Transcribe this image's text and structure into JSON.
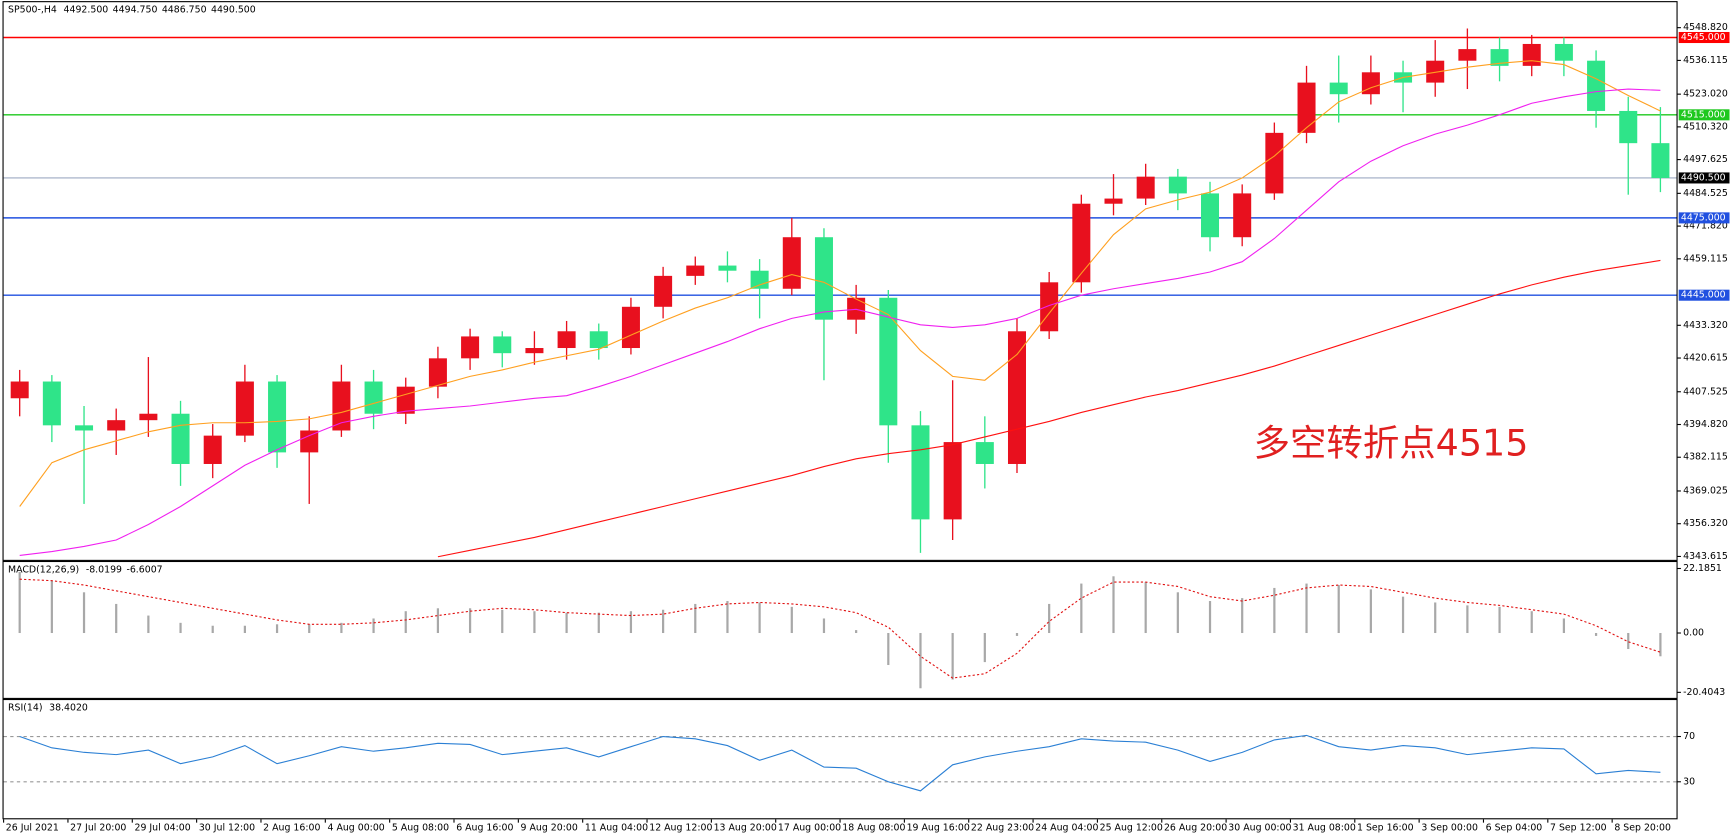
{
  "chart_data": [
    {
      "type": "candlestick",
      "title": "SP500-,H4",
      "header_values": [
        {
          "value": 4492.5,
          "label": "4492.500"
        },
        {
          "value": 4494.75,
          "label": "4494.750"
        },
        {
          "value": 4486.75,
          "label": "4486.750"
        },
        {
          "value": 4490.5,
          "label": "4490.500"
        }
      ],
      "open": [
        4405,
        4411.5,
        4394.5,
        4392.5,
        4396.5,
        4399,
        4379.5,
        4390.5,
        4411.5,
        4384,
        4392.5,
        4411.5,
        4399,
        4409.5,
        4420.5,
        4429,
        4422.5,
        4424.5,
        4431,
        4424.5,
        4440.5,
        4452.5,
        4456.5,
        4454.5,
        4447.5,
        4467.5,
        4435.5,
        4444,
        4394.5,
        4358,
        4388,
        4379.5,
        4431,
        4450,
        4480.5,
        4482.5,
        4491,
        4484.5,
        4467.5,
        4484.5,
        4508,
        4527.5,
        4523,
        4531.5,
        4527.5,
        4536,
        4540.5,
        4534,
        4542.5,
        4536,
        4516.5,
        4504
      ],
      "high": [
        4416,
        4414,
        4402,
        4401,
        4421,
        4404,
        4395,
        4418,
        4414,
        4398,
        4418,
        4416,
        4413,
        4425,
        4432,
        4431,
        4431,
        4435,
        4434,
        4444,
        4456,
        4460,
        4462,
        4459,
        4475,
        4471,
        4449,
        4447,
        4400,
        4412,
        4398,
        4436,
        4454,
        4484,
        4492,
        4496,
        4494,
        4489,
        4488,
        4512,
        4534,
        4538,
        4538,
        4536,
        4544,
        4548.5,
        4545,
        4546,
        4545,
        4540,
        4522,
        4518
      ],
      "low": [
        4398,
        4388,
        4364,
        4383,
        4390,
        4371,
        4374,
        4388,
        4378,
        4364,
        4390,
        4393,
        4395,
        4405,
        4416,
        4417,
        4418,
        4420,
        4420,
        4422,
        4436,
        4449,
        4450,
        4436,
        4445,
        4412,
        4430,
        4380,
        4345,
        4350,
        4370,
        4376,
        4428,
        4446,
        4476,
        4480,
        4478,
        4462,
        4464,
        4482,
        4504,
        4512,
        4519,
        4516,
        4522,
        4525,
        4528,
        4530,
        4530,
        4510,
        4484,
        4485
      ],
      "close": [
        4411.5,
        4394.5,
        4392.5,
        4396.5,
        4399,
        4379.5,
        4390.5,
        4411.5,
        4384,
        4392.5,
        4411.5,
        4399,
        4409.5,
        4420.5,
        4429,
        4422.5,
        4424.5,
        4431,
        4424.5,
        4440.5,
        4452.5,
        4456.5,
        4454.5,
        4447.5,
        4467.5,
        4435.5,
        4444,
        4394.5,
        4358,
        4388,
        4379.5,
        4431,
        4450,
        4480.5,
        4482.5,
        4491,
        4484.5,
        4467.5,
        4484.5,
        4508,
        4527.5,
        4523,
        4531.5,
        4527.5,
        4536,
        4540.5,
        4534,
        4542.5,
        4536,
        4516.5,
        4504,
        4490.5
      ],
      "up_color": "#e8101e",
      "down_color": "#2fe489",
      "series": [
        {
          "color": "#ffa020",
          "values": [
            4363,
            4380,
            4385,
            4388.5,
            4392,
            4394.5,
            4395.5,
            4395.5,
            4396,
            4397,
            4399.5,
            4403,
            4406.5,
            4410,
            4413.5,
            4416,
            4419,
            4421.5,
            4424,
            4429.5,
            4435,
            4440,
            4444,
            4449,
            4453,
            4450,
            4443.5,
            4437.5,
            4423.5,
            4413.5,
            4412,
            4422,
            4438,
            4453.5,
            4468.5,
            4478.5,
            4482,
            4485,
            4490.5,
            4499,
            4510,
            4520,
            4525.5,
            4529.5,
            4531.5,
            4533.5,
            4535,
            4536,
            4534.5,
            4529,
            4522.5,
            4516.5
          ]
        },
        {
          "color": "#f020f0",
          "values": [
            4344,
            4345.5,
            4347.5,
            4350,
            4356,
            4363,
            4371,
            4379,
            4385,
            4390.5,
            4395.5,
            4398,
            4400,
            4401,
            4402,
            4403.5,
            4405,
            4406,
            4409.5,
            4413.5,
            4418,
            4422.5,
            4427,
            4432,
            4436,
            4438.5,
            4439.5,
            4436.5,
            4433.5,
            4432.5,
            4433.5,
            4436,
            4441,
            4445,
            4447.5,
            4449.5,
            4451.5,
            4454,
            4458,
            4467,
            4478,
            4489,
            4497,
            4503,
            4507.5,
            4511,
            4515,
            4519.5,
            4522,
            4524,
            4525,
            4524.5
          ]
        },
        {
          "color": "#ff1010",
          "values": [
            null,
            null,
            null,
            null,
            null,
            null,
            null,
            null,
            null,
            null,
            null,
            null,
            null,
            4343.5,
            4346,
            4348.5,
            4351,
            4354,
            4357,
            4360,
            4363,
            4366,
            4369,
            4372,
            4375,
            4378.5,
            4381.5,
            4383.5,
            4385,
            4387,
            4390,
            4393,
            4396,
            4399.5,
            4402.5,
            4405.5,
            4408,
            4411,
            4414,
            4417.5,
            4421.5,
            4425.5,
            4429.5,
            4433.5,
            4437.5,
            4441.5,
            4445.5,
            4449,
            4452,
            4454.5,
            4456.5,
            4458.5
          ]
        }
      ],
      "ylim": [
        4342.3,
        4558.7
      ],
      "yticks": [
        {
          "value": 4548.82,
          "label": "4548.820"
        },
        4536.115,
        {
          "value": 4523.02,
          "label": "4523.020"
        },
        {
          "value": 4510.32,
          "label": "4510.320"
        },
        4497.625,
        4484.525,
        {
          "value": 4471.82,
          "label": "4471.820"
        },
        4459.115,
        {
          "value": 4433.32,
          "label": "4433.320"
        },
        4420.615,
        4407.525,
        {
          "value": 4394.82,
          "label": "4394.820"
        },
        4382.115,
        4369.025,
        {
          "value": 4356.32,
          "label": "4356.320"
        },
        4343.615
      ],
      "levels": [
        {
          "value": 4545,
          "label": "4545.000",
          "color": "#ff0000"
        },
        {
          "value": 4515,
          "label": "4515.000",
          "color": "#1ec81e"
        },
        {
          "value": 4490.5,
          "label": "4490.500",
          "color": "#000000"
        },
        {
          "value": 4475,
          "label": "4475.000",
          "color": "#2050e0"
        },
        {
          "value": 4445,
          "label": "4445.000",
          "color": "#2050e0"
        }
      ],
      "annotation": "多空转折点4515",
      "annotation_color": "#e02020"
    },
    {
      "type": "macd",
      "title": "MACD(12,26,9)",
      "header_values": [
        -8.0199,
        -6.6007
      ],
      "hist": [
        21,
        18,
        14,
        10,
        6,
        3.5,
        2.5,
        2.5,
        3,
        3,
        3.5,
        5,
        7.5,
        8.5,
        8.5,
        8,
        7.5,
        7,
        7,
        7.5,
        8,
        10,
        11,
        10.5,
        9,
        5,
        1,
        -11,
        -19,
        -16,
        -10,
        -1,
        10,
        17,
        19.5,
        17.5,
        14,
        11,
        12,
        15.5,
        17,
        16.5,
        15,
        12.5,
        10.5,
        9.5,
        9,
        7.5,
        5,
        -1,
        -5.5,
        -8
      ],
      "signal": [
        18.5,
        18,
        16.5,
        14.5,
        12.5,
        10.5,
        8.5,
        6.5,
        4.5,
        3,
        3,
        3.5,
        4.5,
        6,
        7.5,
        8.5,
        8,
        7,
        6.5,
        6,
        6.5,
        8.5,
        10,
        10.5,
        10,
        9,
        7,
        2,
        -8,
        -15.5,
        -14,
        -7,
        4,
        12,
        17.5,
        17.5,
        16,
        12.5,
        11,
        13,
        15.5,
        16.5,
        16,
        14,
        12,
        10.5,
        9.5,
        8,
        6.5,
        2.5,
        -3,
        -6.6
      ],
      "hist_color": "#a8a8a8",
      "signal_color": "#e01010",
      "ylim": [
        -22.3,
        24.4
      ],
      "yticks": [
        22.1851,
        {
          "value": 0,
          "label": "0.00"
        },
        -20.4043
      ]
    },
    {
      "type": "rsi",
      "title": "RSI(14)",
      "header_values": [
        {
          "value": 38.402,
          "label": "38.4020"
        }
      ],
      "values": [
        70,
        60,
        56,
        54,
        58,
        46,
        52,
        62,
        46,
        53,
        61,
        57,
        60,
        64,
        63,
        54,
        57,
        60,
        52,
        61,
        70,
        68,
        62,
        49,
        58,
        43,
        42,
        30,
        22,
        45,
        52,
        57,
        61,
        68,
        66,
        65,
        58,
        48,
        56,
        67,
        71,
        61,
        58,
        62,
        60,
        54,
        57,
        60,
        59,
        37,
        40,
        38.4
      ],
      "color": "#2a7fd4",
      "ylim": [
        -2.2,
        102.2
      ],
      "yticks": [
        70,
        30
      ],
      "grid": true,
      "categories": [
        "26 Jul 2021",
        null,
        "27 Jul 20:00",
        null,
        "29 Jul 04:00",
        null,
        "30 Jul 12:00",
        null,
        "2 Aug 16:00",
        null,
        "4 Aug 00:00",
        null,
        "5 Aug 08:00",
        null,
        "6 Aug 16:00",
        null,
        "9 Aug 20:00",
        null,
        "11 Aug 04:00",
        null,
        "12 Aug 12:00",
        null,
        "13 Aug 20:00",
        null,
        "17 Aug 00:00",
        null,
        "18 Aug 08:00",
        null,
        "19 Aug 16:00",
        null,
        "22 Aug 23:00",
        null,
        "24 Aug 04:00",
        null,
        "25 Aug 12:00",
        null,
        "26 Aug 20:00",
        null,
        "30 Aug 00:00",
        null,
        "31 Aug 08:00",
        null,
        "1 Sep 16:00",
        null,
        "3 Sep 00:00",
        null,
        "6 Sep 04:00",
        null,
        "7 Sep 12:00",
        null,
        "8 Sep 20:00",
        null
      ]
    }
  ]
}
